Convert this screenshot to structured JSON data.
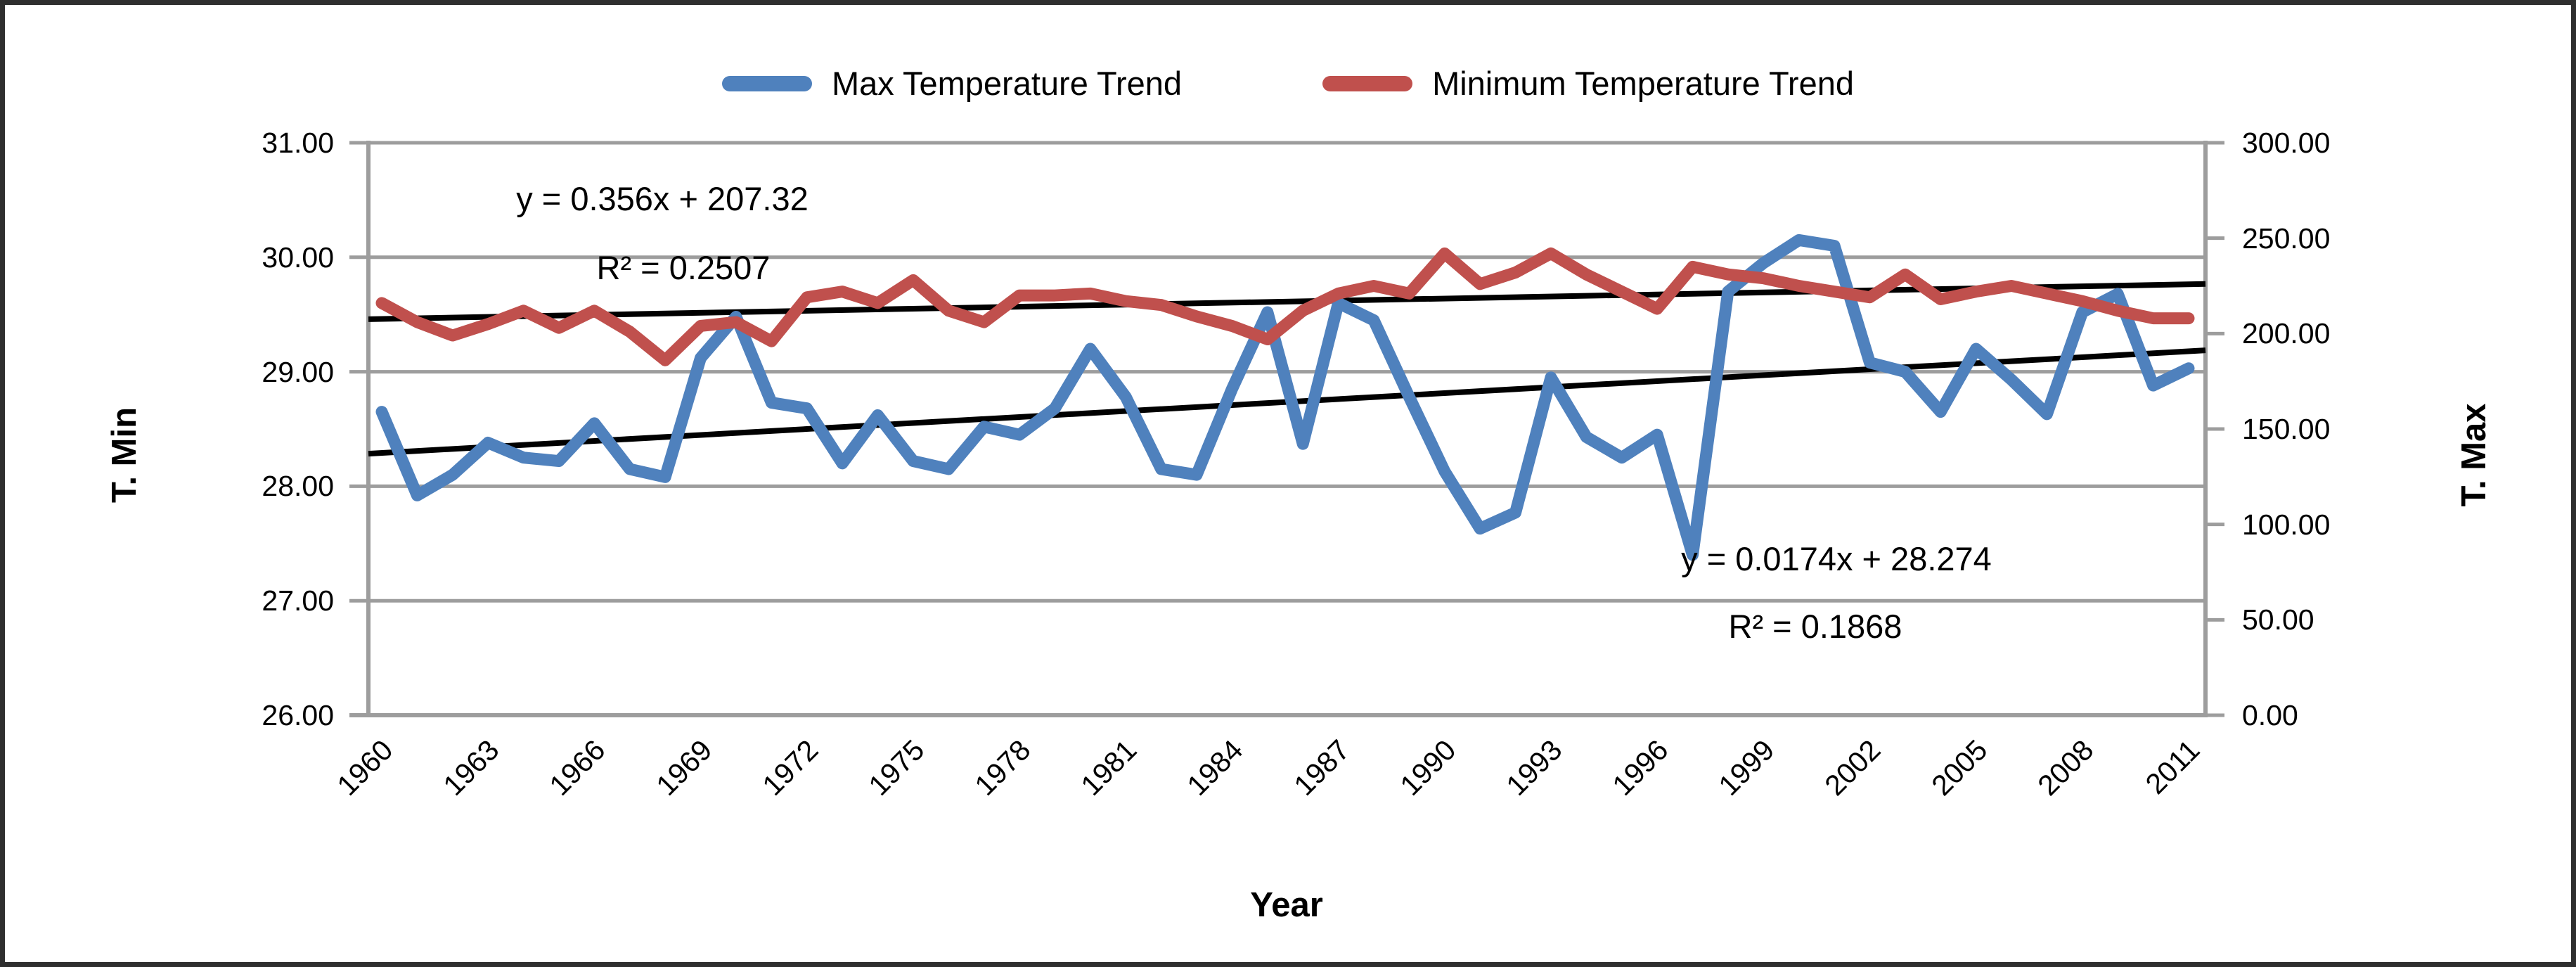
{
  "chart_data": {
    "type": "line",
    "title": "",
    "grid": true,
    "legend_position": "top",
    "x_axis": {
      "title": "Year"
    },
    "left_axis": {
      "title": "T. Min",
      "min": 26,
      "max": 31,
      "step": 1,
      "tick_labels": [
        "31.00",
        "30.00",
        "29.00",
        "28.00",
        "27.00",
        "26.00"
      ]
    },
    "right_axis": {
      "title": "T. Max",
      "min": 0,
      "max": 300,
      "step": 50,
      "tick_labels": [
        "300.00",
        "250.00",
        "200.00",
        "150.00",
        "100.00",
        "50.00",
        "0.00"
      ]
    },
    "x": [
      1960,
      1961,
      1962,
      1963,
      1964,
      1965,
      1966,
      1967,
      1968,
      1969,
      1970,
      1971,
      1972,
      1973,
      1974,
      1975,
      1976,
      1977,
      1978,
      1979,
      1980,
      1981,
      1982,
      1983,
      1984,
      1985,
      1986,
      1987,
      1988,
      1989,
      1990,
      1991,
      1992,
      1993,
      1994,
      1995,
      1996,
      1997,
      1998,
      1999,
      2000,
      2001,
      2002,
      2003,
      2004,
      2005,
      2006,
      2007,
      2008,
      2009,
      2010,
      2011
    ],
    "x_tick_labels": [
      "1960",
      "1963",
      "1966",
      "1969",
      "1972",
      "1975",
      "1978",
      "1981",
      "1984",
      "1987",
      "1990",
      "1993",
      "1996",
      "1999",
      "2002",
      "2005",
      "2008",
      "2011"
    ],
    "series": [
      {
        "name": "Max Temperature Trend",
        "color": "#4F81BD",
        "axis": "left",
        "values": [
          28.65,
          27.92,
          28.1,
          28.38,
          28.25,
          28.22,
          28.55,
          28.15,
          28.08,
          29.12,
          29.48,
          28.73,
          28.68,
          28.2,
          28.62,
          28.22,
          28.15,
          28.52,
          28.45,
          28.68,
          29.2,
          28.78,
          28.15,
          28.1,
          28.85,
          29.52,
          28.37,
          29.6,
          29.45,
          28.78,
          28.13,
          27.63,
          27.77,
          28.95,
          28.43,
          28.25,
          28.45,
          27.4,
          29.7,
          29.95,
          30.15,
          30.1,
          29.08,
          29.0,
          28.65,
          29.2,
          28.93,
          28.63,
          29.52,
          29.68,
          28.88,
          29.03
        ]
      },
      {
        "name": "Minimum Temperature Trend",
        "color": "#C0504D",
        "axis": "right",
        "values": [
          216,
          206,
          199,
          205,
          212,
          203,
          212,
          201,
          186,
          204,
          206,
          196,
          219,
          222,
          216,
          228,
          212,
          206,
          220,
          220,
          221,
          217,
          215,
          209,
          204,
          197,
          212,
          221,
          225,
          221,
          242,
          226,
          232,
          242,
          231,
          222,
          213,
          235,
          231,
          229,
          225,
          222,
          219,
          231,
          218,
          222,
          225,
          221,
          217,
          212,
          208,
          208
        ]
      }
    ],
    "trendlines": [
      {
        "series": "Minimum Temperature Trend",
        "axis": "right",
        "color": "#000000",
        "equation": "y = 0.356x + 207.32",
        "r2": "R² = 0.2507",
        "start_value": 207.68,
        "end_value": 225.84
      },
      {
        "series": "Max Temperature Trend",
        "axis": "left",
        "color": "#000000",
        "equation": "y = 0.0174x + 28.274",
        "r2": "R² = 0.1868",
        "start_value": 28.291,
        "end_value": 29.179
      }
    ]
  }
}
